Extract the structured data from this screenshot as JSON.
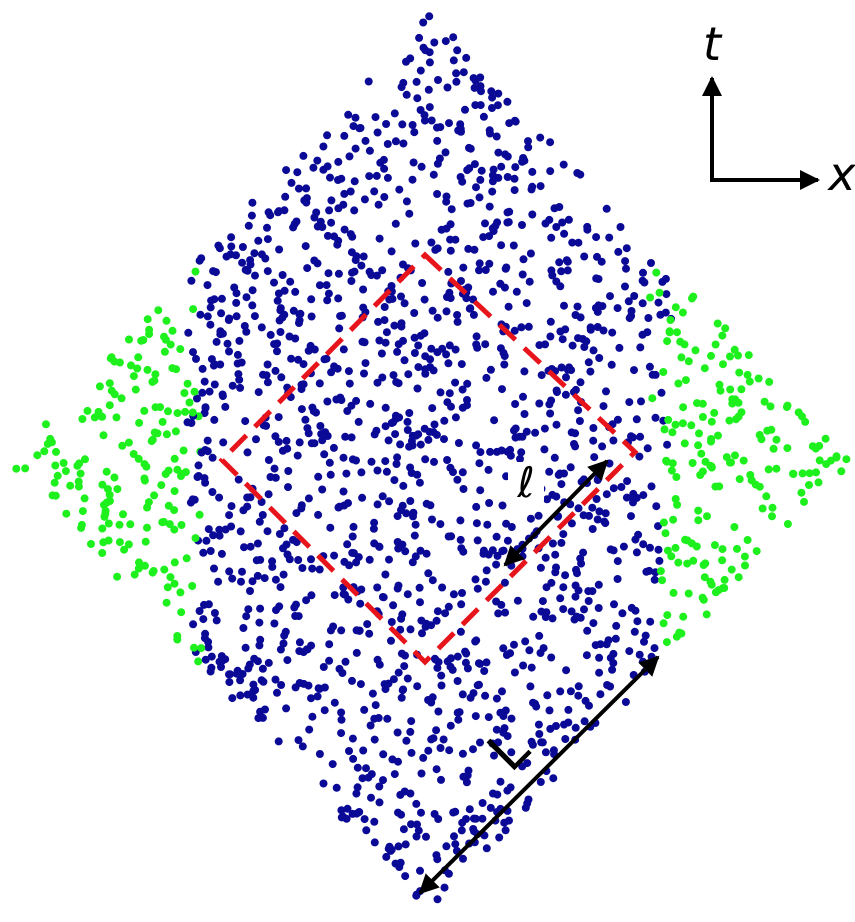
{
  "axes": {
    "time_label": "t",
    "space_label": "x"
  },
  "labels": {
    "small_interval": "ℓ",
    "large_interval": "L"
  }
}
